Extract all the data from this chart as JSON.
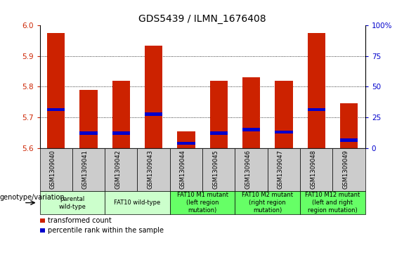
{
  "title": "GDS5439 / ILMN_1676408",
  "samples": [
    "GSM1309040",
    "GSM1309041",
    "GSM1309042",
    "GSM1309043",
    "GSM1309044",
    "GSM1309045",
    "GSM1309046",
    "GSM1309047",
    "GSM1309048",
    "GSM1309049"
  ],
  "red_values": [
    5.975,
    5.79,
    5.82,
    5.935,
    5.655,
    5.82,
    5.83,
    5.82,
    5.975,
    5.745
  ],
  "blue_values": [
    5.725,
    5.648,
    5.648,
    5.71,
    5.615,
    5.648,
    5.66,
    5.652,
    5.725,
    5.625
  ],
  "ylim": [
    5.6,
    6.0
  ],
  "yticks_left": [
    5.6,
    5.7,
    5.8,
    5.9,
    6.0
  ],
  "yticks_right": [
    0,
    25,
    50,
    75,
    100
  ],
  "yticks_right_labels": [
    "0",
    "25",
    "50",
    "75",
    "100%"
  ],
  "bar_base": 5.6,
  "bar_width": 0.55,
  "groups": [
    {
      "label": "parental\nwild-type",
      "cols": [
        0,
        1
      ],
      "color": "#ccffcc"
    },
    {
      "label": "FAT10 wild-type",
      "cols": [
        2,
        3
      ],
      "color": "#ccffcc"
    },
    {
      "label": "FAT10 M1 mutant\n(left region\nmutation)",
      "cols": [
        4,
        5
      ],
      "color": "#66ff66"
    },
    {
      "label": "FAT10 M2 mutant\n(right region\nmutation)",
      "cols": [
        6,
        7
      ],
      "color": "#66ff66"
    },
    {
      "label": "FAT10 M12 mutant\n(left and right\nregion mutation)",
      "cols": [
        8,
        9
      ],
      "color": "#66ff66"
    }
  ],
  "legend_red_label": "transformed count",
  "legend_blue_label": "percentile rank within the sample",
  "genotype_label": "genotype/variation",
  "red_color": "#cc2200",
  "blue_color": "#0000cc",
  "title_fontsize": 10,
  "tick_fontsize": 7.5,
  "group_label_fontsize": 6,
  "sample_label_fontsize": 6,
  "legend_fontsize": 7,
  "genotype_fontsize": 7,
  "sample_row_color": "#cccccc",
  "white": "#ffffff"
}
